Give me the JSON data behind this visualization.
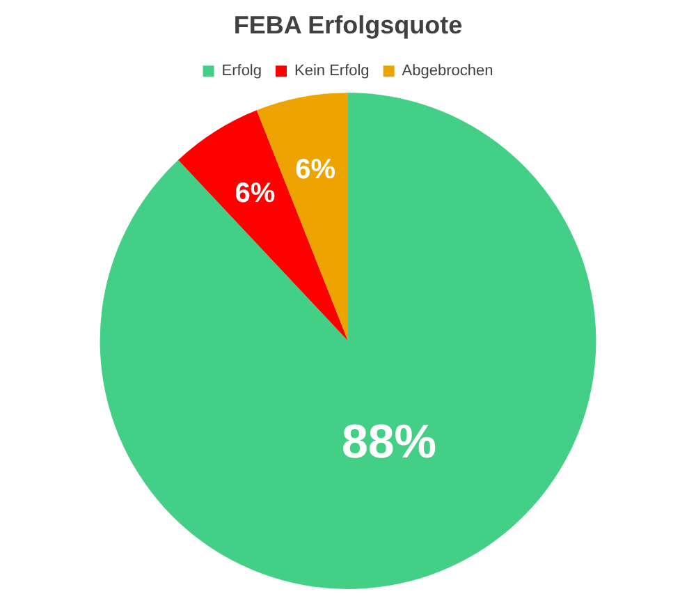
{
  "chart_data": {
    "type": "pie",
    "title": "FEBA Erfolgsquote",
    "categories": [
      "Erfolg",
      "Kein Erfolg",
      "Abgebrochen"
    ],
    "values": [
      88,
      6,
      6
    ],
    "colors": [
      "#44cf87",
      "#ff0000",
      "#eea400"
    ],
    "value_labels": [
      "88%",
      "6%",
      "6%"
    ],
    "legend": "top"
  }
}
